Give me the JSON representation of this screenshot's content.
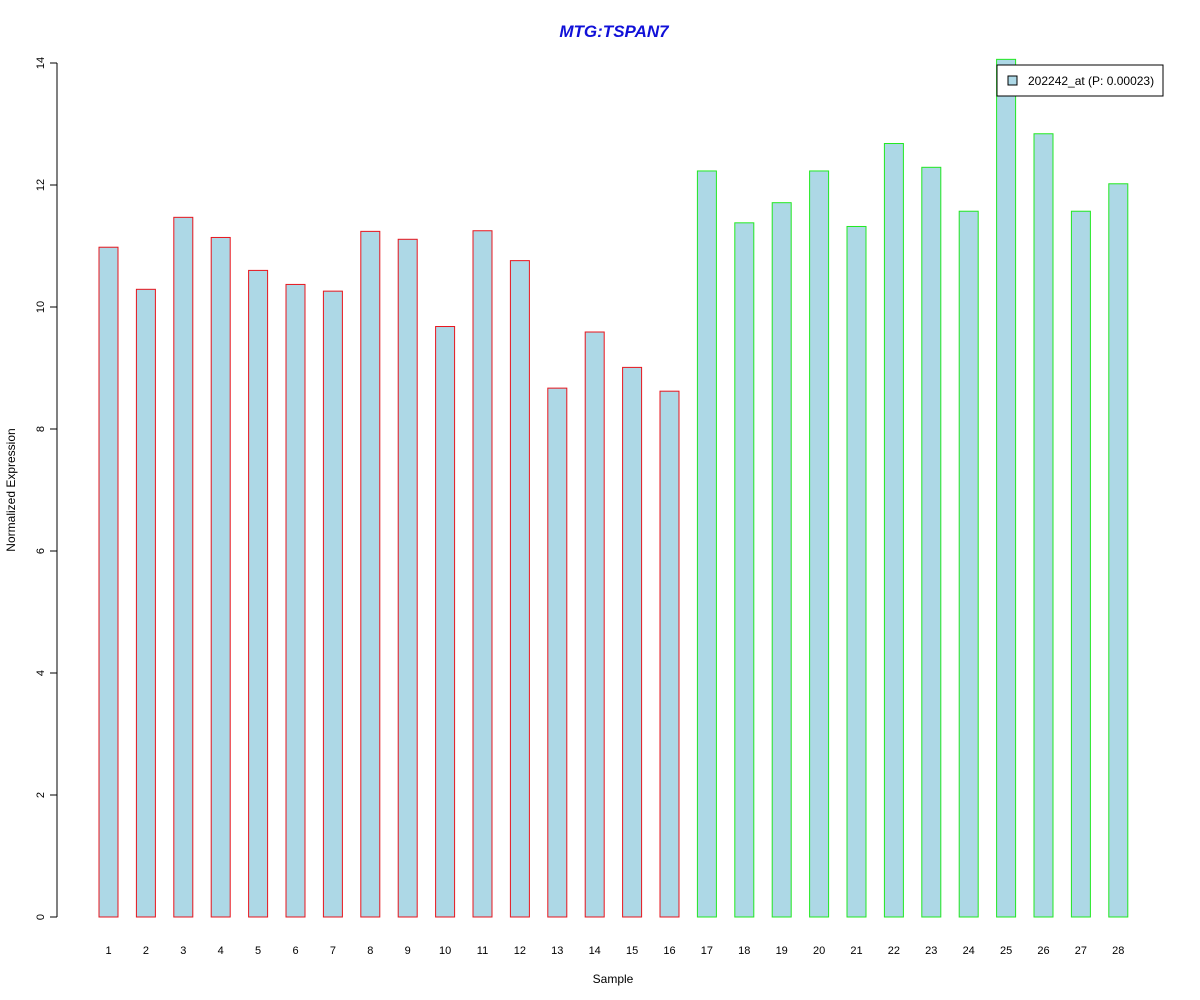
{
  "chart_data": {
    "type": "bar",
    "title": "MTG:TSPAN7",
    "xlabel": "Sample",
    "ylabel": "Normalized Expression",
    "ylim": [
      0,
      14
    ],
    "yticks": [
      0,
      2,
      4,
      6,
      8,
      10,
      12,
      14
    ],
    "categories": [
      "1",
      "2",
      "3",
      "4",
      "5",
      "6",
      "7",
      "8",
      "9",
      "10",
      "11",
      "12",
      "13",
      "14",
      "15",
      "16",
      "17",
      "18",
      "19",
      "20",
      "21",
      "22",
      "23",
      "24",
      "25",
      "26",
      "27",
      "28"
    ],
    "series": [
      {
        "name": "202242_at (P: 0.00023)",
        "values": [
          10.98,
          10.29,
          11.47,
          11.14,
          10.6,
          10.37,
          10.26,
          11.24,
          11.11,
          9.68,
          11.25,
          10.76,
          8.67,
          9.59,
          9.01,
          8.62,
          12.23,
          11.38,
          11.71,
          12.23,
          11.32,
          12.68,
          12.29,
          11.57,
          14.06,
          12.84,
          11.57,
          12.02
        ]
      }
    ],
    "bar_groups": [
      {
        "from": 1,
        "to": 16,
        "border_color": "#e8141c"
      },
      {
        "from": 17,
        "to": 28,
        "border_color": "#21e821"
      }
    ],
    "bar_fill": "#add8e6",
    "title_color": "#1010d8",
    "legend_position": "top-right",
    "grid": false
  }
}
